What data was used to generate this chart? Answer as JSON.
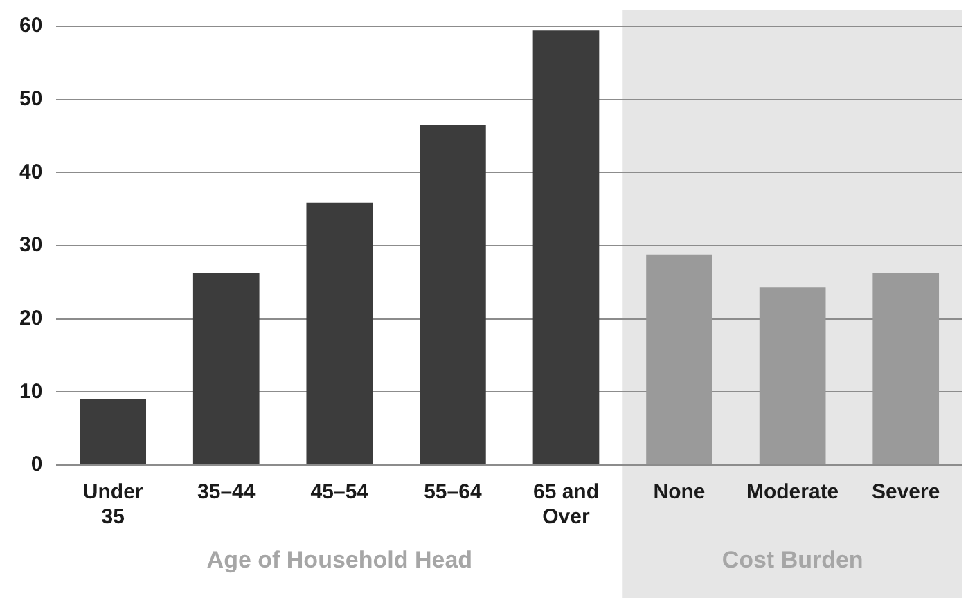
{
  "chart_data": {
    "type": "bar",
    "xlabel": "Age of Household Head",
    "categories": [
      "Under 35",
      "35–44",
      "45–54",
      "55–64",
      "65 and Over",
      "None",
      "Moderate",
      "Severe"
    ],
    "values": [
      9,
      26.3,
      35.9,
      46.5,
      59.4,
      28.8,
      24.3,
      26.3
    ],
    "colors": [
      "#3c3c3c",
      "#3c3c3c",
      "#3c3c3c",
      "#3c3c3c",
      "#3c3c3c",
      "#9a9a9a",
      "#9a9a9a",
      "#9a9a9a"
    ],
    "ylim": [
      0,
      60
    ],
    "yticks": [
      0,
      10,
      20,
      30,
      40,
      50,
      60
    ],
    "grid": "y",
    "legend": false,
    "bands": [
      {
        "axis": "x",
        "from": "None",
        "to": "Severe",
        "label": "Cost Burden",
        "color": "#e6e6e6"
      }
    ]
  }
}
